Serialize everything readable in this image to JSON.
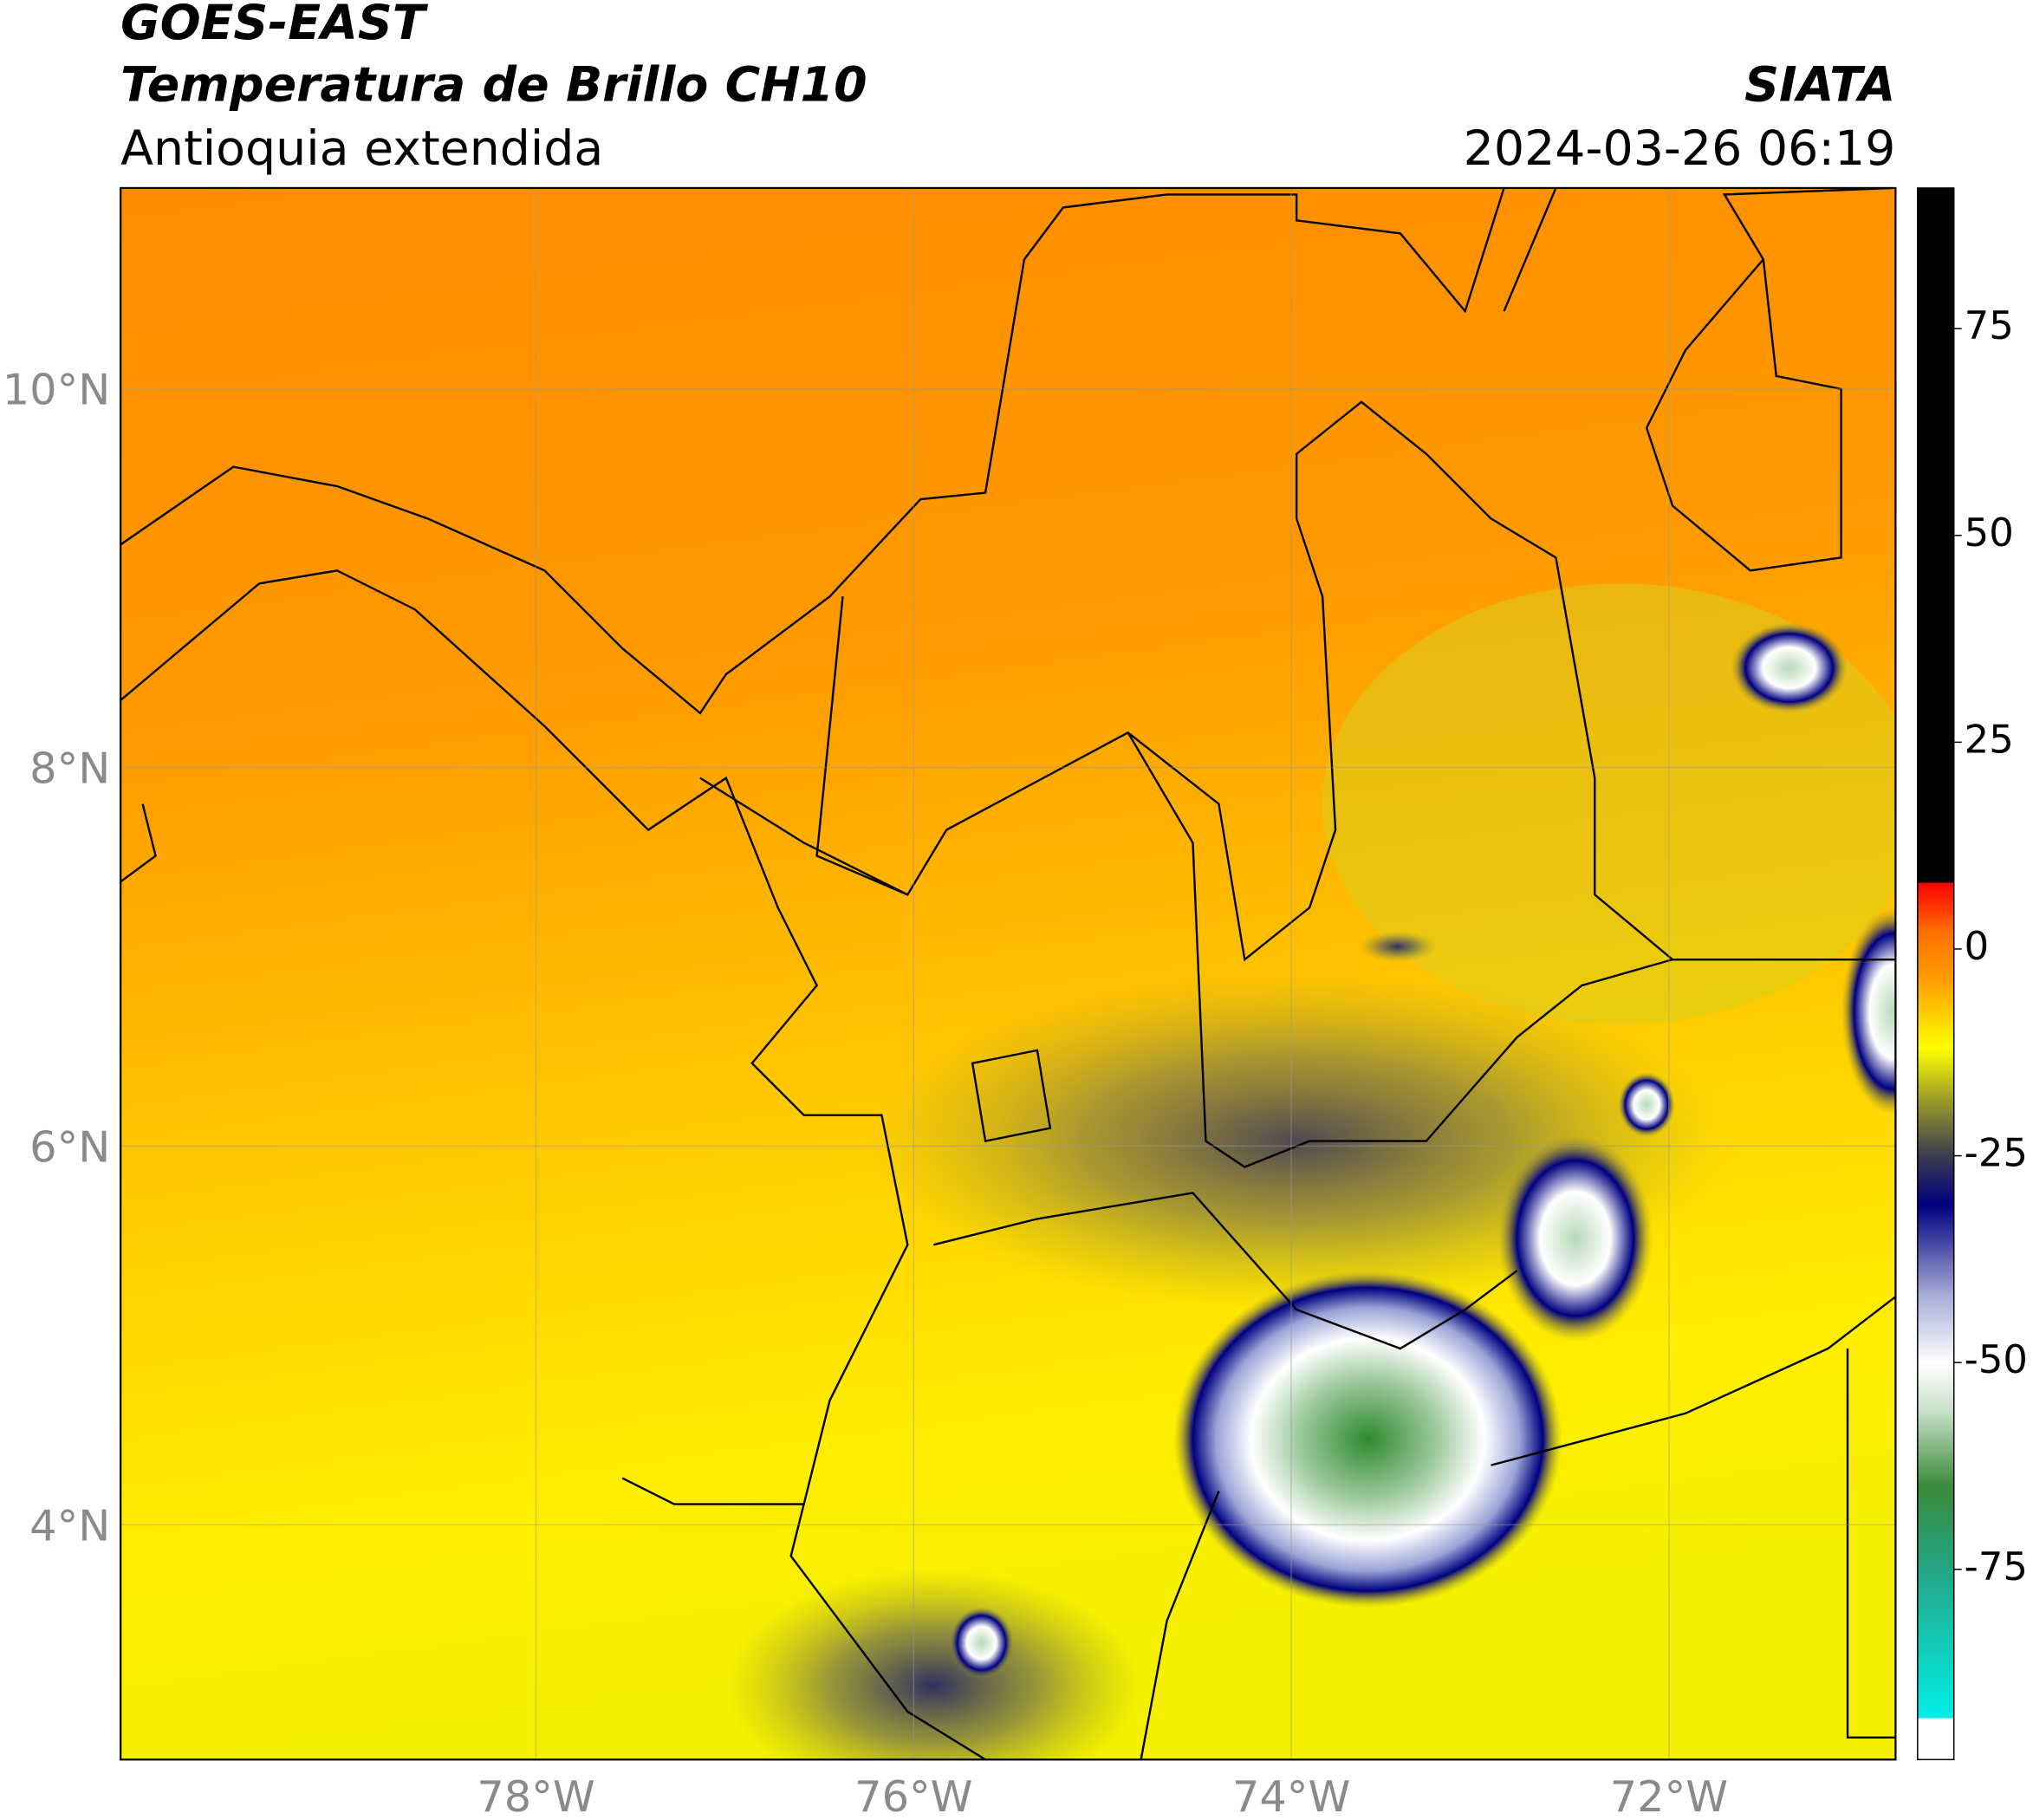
{
  "header": {
    "satellite": "GOES-EAST",
    "title": "Temperatura de Brillo CH10",
    "region": "Antioquia extendida",
    "source": "SIATA",
    "timestamp": "2024-03-26 06:19"
  },
  "map": {
    "xlim": [
      -80.2,
      -70.8
    ],
    "ylim": [
      2.76,
      11.06
    ],
    "xticks": [
      {
        "value": -78,
        "label": "78°W"
      },
      {
        "value": -76,
        "label": "76°W"
      },
      {
        "value": -74,
        "label": "74°W"
      },
      {
        "value": -72,
        "label": "72°W"
      }
    ],
    "yticks": [
      {
        "value": 4,
        "label": "4°N"
      },
      {
        "value": 6,
        "label": "6°N"
      },
      {
        "value": 8,
        "label": "8°N"
      },
      {
        "value": 10,
        "label": "10°N"
      }
    ],
    "grid": true
  },
  "colorbar": {
    "lim": [
      -98,
      92
    ],
    "ticks": [
      75,
      50,
      25,
      0,
      -25,
      -50,
      -75
    ],
    "stops": [
      {
        "value": -98,
        "color": "#ffffff"
      },
      {
        "value": -93,
        "color": "#ffffff"
      },
      {
        "value": -93,
        "color": "#00eee6"
      },
      {
        "value": -75,
        "color": "#24a585"
      },
      {
        "value": -65,
        "color": "#3a8a3a"
      },
      {
        "value": -56,
        "color": "#c6dec6"
      },
      {
        "value": -50,
        "color": "#ffffff"
      },
      {
        "value": -42,
        "color": "#a8aed8"
      },
      {
        "value": -31,
        "color": "#000080"
      },
      {
        "value": -25,
        "color": "#3c3c50"
      },
      {
        "value": -18,
        "color": "#a0a028"
      },
      {
        "value": -12,
        "color": "#ffff00"
      },
      {
        "value": -4,
        "color": "#ffa000"
      },
      {
        "value": 2,
        "color": "#ff7000"
      },
      {
        "value": 8,
        "color": "#ff0000"
      },
      {
        "value": 8,
        "color": "#000000"
      },
      {
        "value": 92,
        "color": "#000000"
      }
    ]
  }
}
